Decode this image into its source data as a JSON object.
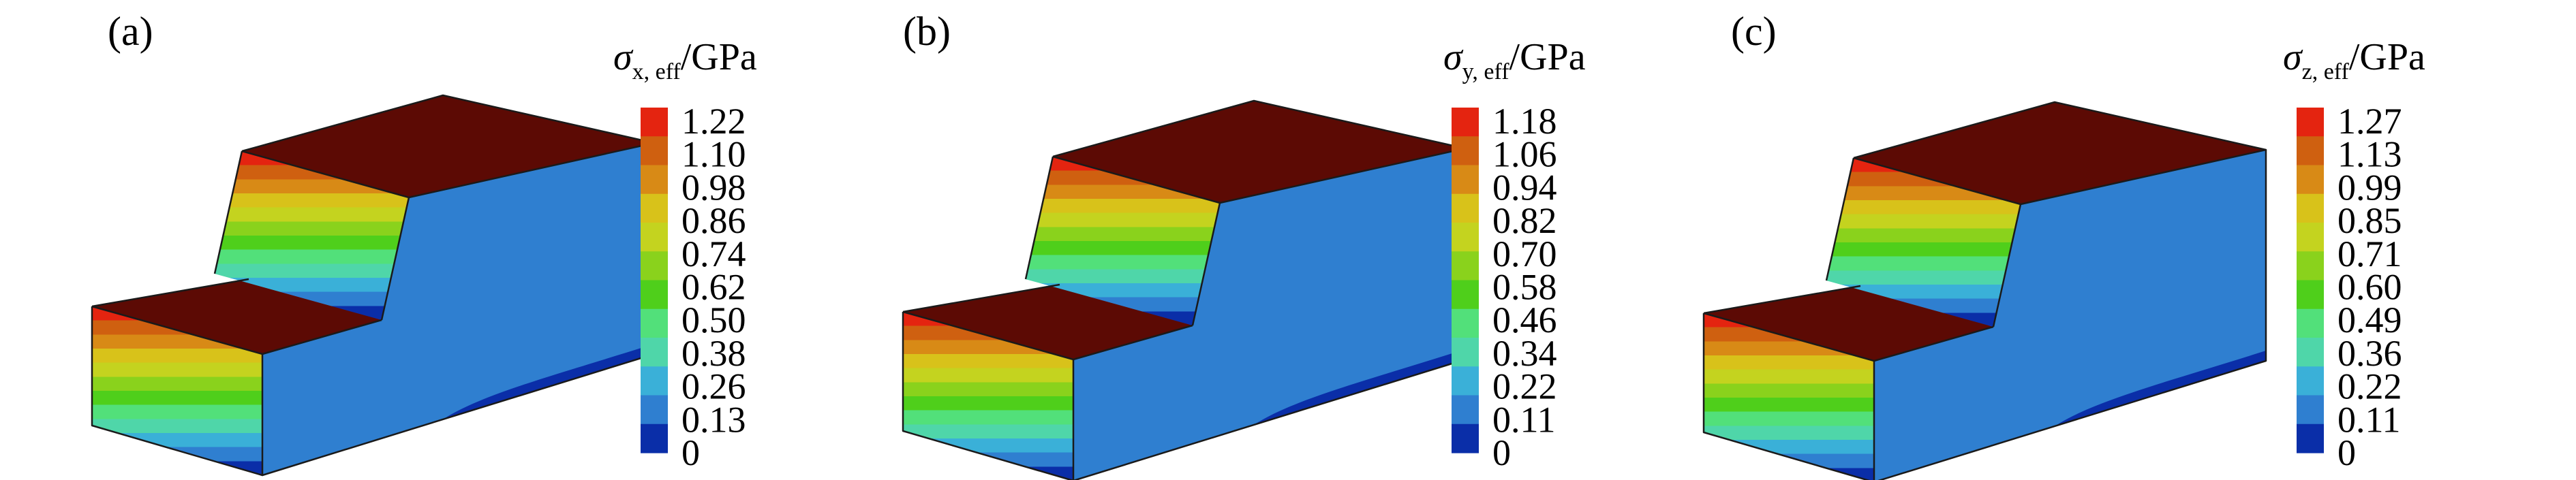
{
  "colors": {
    "bands": [
      "#0a2ea8",
      "#2f7fd0",
      "#3ab0d8",
      "#4fd6a9",
      "#52e07a",
      "#4fcf1b",
      "#8ad21c",
      "#c4d31f",
      "#d8c21a",
      "#d88a16",
      "#cf6010",
      "#e42410"
    ],
    "top_face": "#5c0a04",
    "edge": "#1a1a1a"
  },
  "panels": [
    {
      "label": "(a)",
      "title_symbol": "σ",
      "title_subscript": "x, eff",
      "title_unit": "/GPa",
      "ticks": [
        "1.22",
        "1.10",
        "0.98",
        "0.86",
        "0.74",
        "0.62",
        "0.50",
        "0.38",
        "0.26",
        "0.13",
        "0"
      ]
    },
    {
      "label": "(b)",
      "title_symbol": "σ",
      "title_subscript": "y, eff",
      "title_unit": "/GPa",
      "ticks": [
        "1.18",
        "1.06",
        "0.94",
        "0.82",
        "0.70",
        "0.58",
        "0.46",
        "0.34",
        "0.22",
        "0.11",
        "0"
      ]
    },
    {
      "label": "(c)",
      "title_symbol": "σ",
      "title_subscript": "z, eff",
      "title_unit": "/GPa",
      "ticks": [
        "1.27",
        "1.13",
        "0.99",
        "0.85",
        "0.71",
        "0.60",
        "0.49",
        "0.36",
        "0.22",
        "0.11",
        "0"
      ]
    }
  ]
}
